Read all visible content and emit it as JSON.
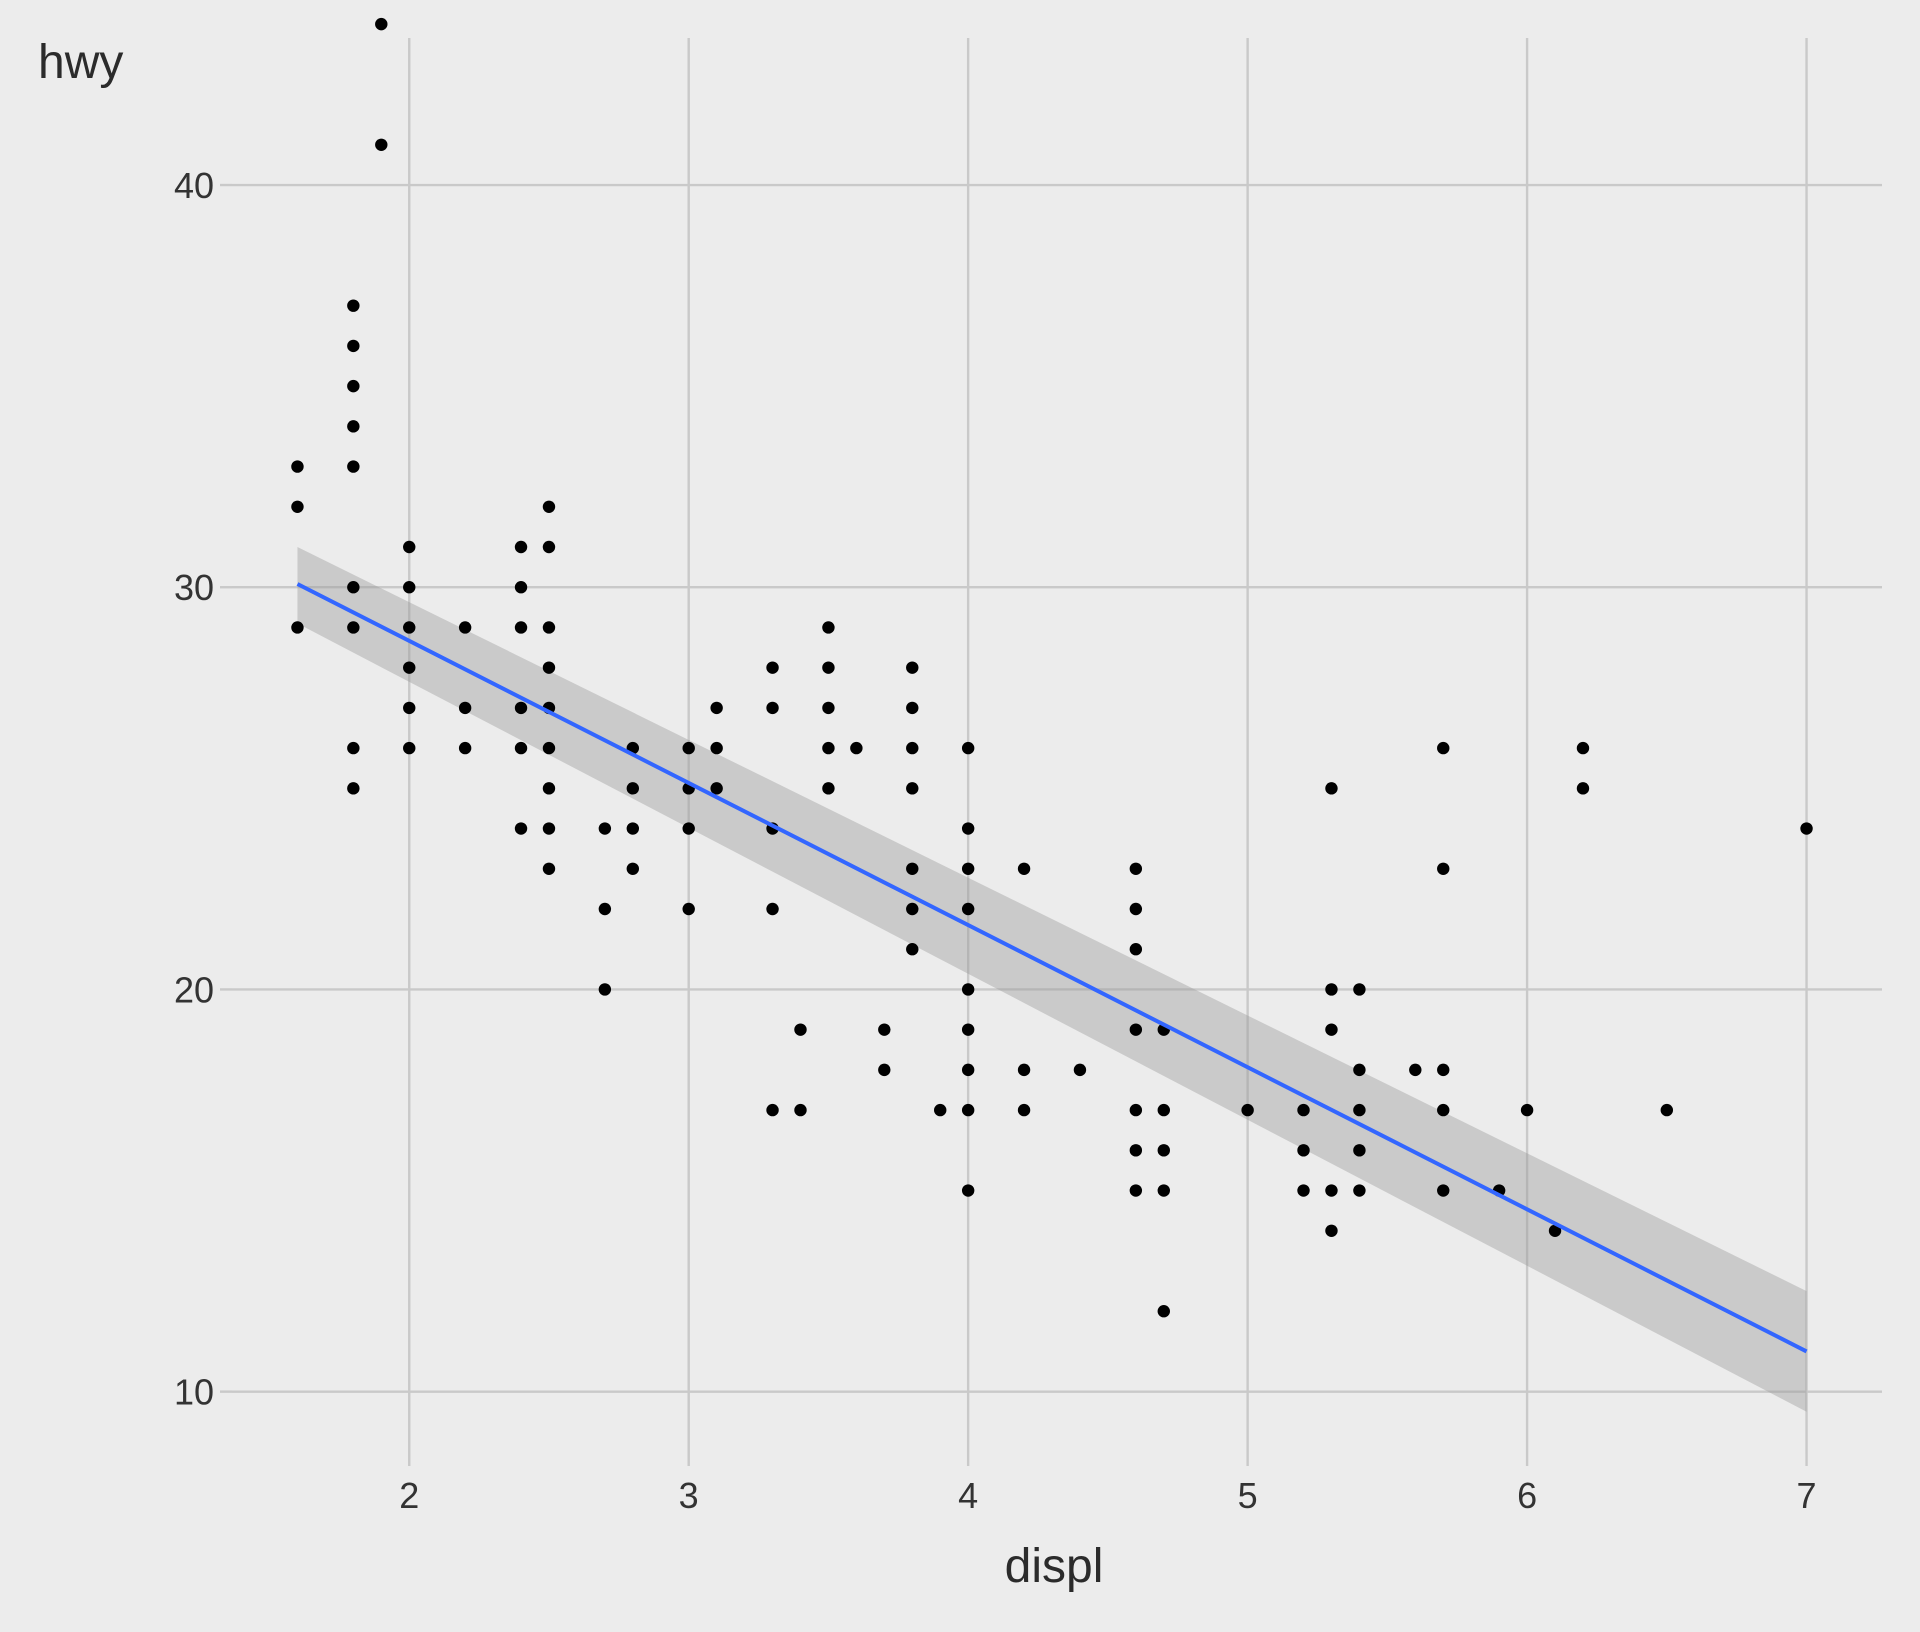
{
  "chart_data": {
    "type": "scatter",
    "xlabel": "displ",
    "ylabel": "hwy",
    "xlim": [
      1.33,
      7.27
    ],
    "ylim": [
      8.4,
      44.6
    ],
    "x_ticks": [
      2,
      3,
      4,
      5,
      6,
      7
    ],
    "y_ticks": [
      10,
      20,
      30,
      40
    ],
    "grid": true,
    "point_color": "#000000",
    "points": [
      [
        1.6,
        33
      ],
      [
        1.6,
        32
      ],
      [
        1.6,
        29
      ],
      [
        1.8,
        37
      ],
      [
        1.8,
        36
      ],
      [
        1.8,
        35
      ],
      [
        1.8,
        34
      ],
      [
        1.8,
        33
      ],
      [
        1.8,
        30
      ],
      [
        1.8,
        29
      ],
      [
        1.8,
        26
      ],
      [
        1.8,
        25
      ],
      [
        1.9,
        44
      ],
      [
        1.9,
        41
      ],
      [
        2.0,
        31
      ],
      [
        2.0,
        30
      ],
      [
        2.0,
        29
      ],
      [
        2.0,
        28
      ],
      [
        2.0,
        27
      ],
      [
        2.0,
        26
      ],
      [
        2.2,
        29
      ],
      [
        2.2,
        27
      ],
      [
        2.2,
        26
      ],
      [
        2.4,
        31
      ],
      [
        2.4,
        30
      ],
      [
        2.4,
        29
      ],
      [
        2.4,
        27
      ],
      [
        2.4,
        26
      ],
      [
        2.4,
        24
      ],
      [
        2.5,
        32
      ],
      [
        2.5,
        31
      ],
      [
        2.5,
        29
      ],
      [
        2.5,
        28
      ],
      [
        2.5,
        27
      ],
      [
        2.5,
        26
      ],
      [
        2.5,
        25
      ],
      [
        2.5,
        24
      ],
      [
        2.5,
        23
      ],
      [
        2.7,
        24
      ],
      [
        2.7,
        22
      ],
      [
        2.7,
        20
      ],
      [
        2.8,
        26
      ],
      [
        2.8,
        25
      ],
      [
        2.8,
        24
      ],
      [
        2.8,
        23
      ],
      [
        3.0,
        26
      ],
      [
        3.0,
        25
      ],
      [
        3.0,
        24
      ],
      [
        3.0,
        22
      ],
      [
        3.1,
        27
      ],
      [
        3.1,
        26
      ],
      [
        3.1,
        25
      ],
      [
        3.3,
        28
      ],
      [
        3.3,
        27
      ],
      [
        3.3,
        24
      ],
      [
        3.3,
        22
      ],
      [
        3.3,
        17
      ],
      [
        3.4,
        19
      ],
      [
        3.4,
        17
      ],
      [
        3.5,
        29
      ],
      [
        3.5,
        28
      ],
      [
        3.5,
        27
      ],
      [
        3.5,
        26
      ],
      [
        3.5,
        25
      ],
      [
        3.6,
        26
      ],
      [
        3.7,
        19
      ],
      [
        3.7,
        18
      ],
      [
        3.8,
        28
      ],
      [
        3.8,
        27
      ],
      [
        3.8,
        26
      ],
      [
        3.8,
        25
      ],
      [
        3.8,
        23
      ],
      [
        3.8,
        22
      ],
      [
        3.8,
        21
      ],
      [
        3.9,
        17
      ],
      [
        4.0,
        26
      ],
      [
        4.0,
        24
      ],
      [
        4.0,
        23
      ],
      [
        4.0,
        22
      ],
      [
        4.0,
        20
      ],
      [
        4.0,
        19
      ],
      [
        4.0,
        18
      ],
      [
        4.0,
        17
      ],
      [
        4.0,
        15
      ],
      [
        4.2,
        23
      ],
      [
        4.2,
        18
      ],
      [
        4.2,
        17
      ],
      [
        4.4,
        18
      ],
      [
        4.6,
        23
      ],
      [
        4.6,
        22
      ],
      [
        4.6,
        21
      ],
      [
        4.6,
        19
      ],
      [
        4.6,
        17
      ],
      [
        4.6,
        16
      ],
      [
        4.6,
        15
      ],
      [
        4.7,
        19
      ],
      [
        4.7,
        17
      ],
      [
        4.7,
        16
      ],
      [
        4.7,
        15
      ],
      [
        4.7,
        12
      ],
      [
        5.0,
        17
      ],
      [
        5.2,
        17
      ],
      [
        5.2,
        16
      ],
      [
        5.2,
        15
      ],
      [
        5.3,
        25
      ],
      [
        5.3,
        20
      ],
      [
        5.3,
        19
      ],
      [
        5.3,
        15
      ],
      [
        5.3,
        14
      ],
      [
        5.4,
        20
      ],
      [
        5.4,
        18
      ],
      [
        5.4,
        17
      ],
      [
        5.4,
        16
      ],
      [
        5.4,
        15
      ],
      [
        5.6,
        18
      ],
      [
        5.7,
        26
      ],
      [
        5.7,
        23
      ],
      [
        5.7,
        18
      ],
      [
        5.7,
        17
      ],
      [
        5.7,
        15
      ],
      [
        5.9,
        15
      ],
      [
        6.0,
        17
      ],
      [
        6.1,
        14
      ],
      [
        6.2,
        26
      ],
      [
        6.2,
        25
      ],
      [
        6.5,
        17
      ],
      [
        7.0,
        24
      ]
    ],
    "trend": {
      "type": "linear",
      "color": "#3366FF",
      "x": [
        1.6,
        7.0
      ],
      "y": [
        30.08,
        11.0
      ],
      "ci_lower": [
        29.1,
        9.5
      ],
      "ci_upper": [
        31.0,
        12.5
      ],
      "ci_color": "#999999"
    }
  }
}
